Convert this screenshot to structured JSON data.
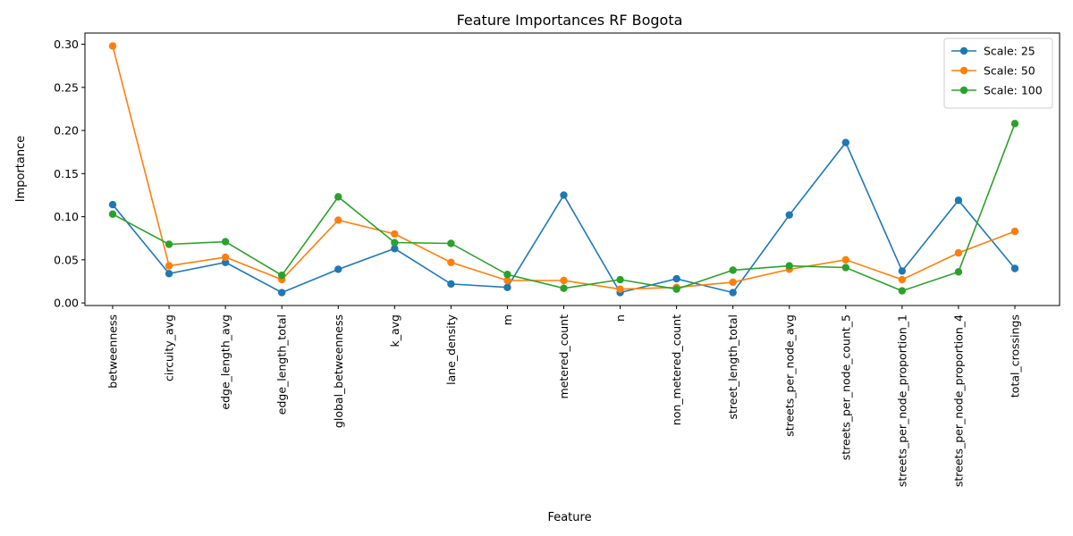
{
  "chart_data": {
    "type": "line",
    "title": "Feature Importances RF Bogota",
    "xlabel": "Feature",
    "ylabel": "Importance",
    "ylim": [
      -0.003,
      0.313
    ],
    "yticks": [
      "0.00",
      "0.05",
      "0.10",
      "0.15",
      "0.20",
      "0.25",
      "0.30"
    ],
    "categories": [
      "betweenness",
      "circuity_avg",
      "edge_length_avg",
      "edge_length_total",
      "global_betweenness",
      "k_avg",
      "lane_density",
      "m",
      "metered_count",
      "n",
      "non_metered_count",
      "street_length_total",
      "streets_per_node_avg",
      "streets_per_node_count_5",
      "streets_per_node_proportion_1",
      "streets_per_node_proportion_4",
      "total_crossings"
    ],
    "series": [
      {
        "name": "Scale: 25",
        "color": "#1f77b4",
        "values": [
          0.114,
          0.034,
          0.047,
          0.012,
          0.039,
          0.063,
          0.022,
          0.018,
          0.125,
          0.012,
          0.028,
          0.012,
          0.102,
          0.186,
          0.037,
          0.119,
          0.04
        ]
      },
      {
        "name": "Scale: 50",
        "color": "#ff7f0e",
        "values": [
          0.298,
          0.043,
          0.053,
          0.027,
          0.096,
          0.08,
          0.047,
          0.026,
          0.026,
          0.016,
          0.018,
          0.024,
          0.039,
          0.05,
          0.027,
          0.058,
          0.083
        ]
      },
      {
        "name": "Scale: 100",
        "color": "#2ca02c",
        "values": [
          0.103,
          0.068,
          0.071,
          0.032,
          0.123,
          0.07,
          0.069,
          0.033,
          0.017,
          0.027,
          0.016,
          0.038,
          0.043,
          0.041,
          0.014,
          0.036,
          0.208
        ]
      }
    ],
    "grid": false,
    "legend_position": "top-right"
  }
}
